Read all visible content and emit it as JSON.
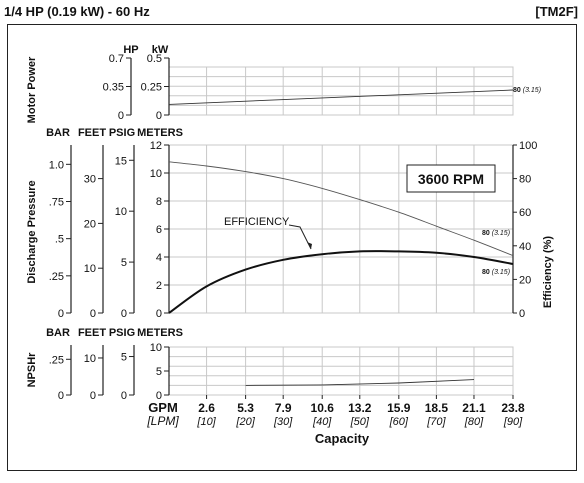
{
  "header": {
    "title": "1/4 HP (0.19 kW) - 60 Hz",
    "code": "[TM2F]"
  },
  "chart_data": {
    "type": "line",
    "x_title": "Capacity",
    "x_units": [
      "GPM",
      "[LPM]"
    ],
    "x_gpm": [
      0,
      2.6,
      5.3,
      7.9,
      10.6,
      13.2,
      15.9,
      18.5,
      21.1,
      23.8
    ],
    "x_ticks_gpm": [
      "2.6",
      "5.3",
      "7.9",
      "10.6",
      "13.2",
      "15.9",
      "18.5",
      "21.1",
      "23.8"
    ],
    "x_ticks_lpm": [
      "[10]",
      "[20]",
      "[30]",
      "[40]",
      "[50]",
      "[60]",
      "[70]",
      "[80]",
      "[90]"
    ],
    "xlim_gpm": [
      0,
      23.8
    ],
    "panels": {
      "power": {
        "ylabel": "Motor Power",
        "unit_hp": "HP",
        "unit_kw": "kW",
        "ylim_kw": [
          0,
          0.5
        ],
        "hp_ticks": [
          "0.7",
          "0.35",
          "0"
        ],
        "hp_values": [
          0.7,
          0.35,
          0
        ],
        "kw_ticks": [
          "0.5",
          "0.25",
          "0"
        ],
        "kw_values": [
          0.5,
          0.25,
          0
        ],
        "series": [
          {
            "label": "80",
            "label_sub": "(3.15)",
            "x": [
              0,
              23.8
            ],
            "y_kw": [
              0.11,
              0.26
            ]
          }
        ]
      },
      "pressure": {
        "ylabel": "Discharge Pressure",
        "units": [
          "BAR",
          "FEET",
          "PSIG",
          "METERS"
        ],
        "ylim_meters": [
          0,
          12
        ],
        "meter_ticks": [
          "12",
          "10",
          "8",
          "6",
          "4",
          "2",
          "0"
        ],
        "bar_ticks": [
          "1.0",
          ".75",
          ".5",
          ".25",
          "0"
        ],
        "bar_values": [
          1.0,
          0.75,
          0.5,
          0.25,
          0
        ],
        "feet_ticks": [
          "30",
          "20",
          "10",
          "0"
        ],
        "feet_values": [
          30,
          20,
          10,
          0
        ],
        "psig_ticks": [
          "15",
          "10",
          "5",
          "0"
        ],
        "psig_values": [
          15,
          10,
          5,
          0
        ],
        "eff_label": "Efficiency (%)",
        "ylim_eff": [
          0,
          100
        ],
        "eff_ticks": [
          "100",
          "80",
          "60",
          "40",
          "20",
          "0"
        ],
        "rpm_label": "3600 RPM",
        "efficiency_label": "EFFICIENCY",
        "series": [
          {
            "name": "head",
            "label": "80",
            "label_sub": "(3.15)",
            "x": [
              0,
              2.6,
              5.3,
              7.9,
              10.6,
              13.2,
              15.9,
              18.5,
              21.1,
              23.8
            ],
            "y_meters": [
              10.8,
              10.5,
              10.1,
              9.6,
              8.9,
              8.1,
              7.2,
              6.2,
              5.2,
              4.1
            ]
          },
          {
            "name": "efficiency",
            "x": [
              0,
              2.6,
              5.3,
              7.9,
              10.6,
              13.2,
              15.9,
              18.5,
              21.1,
              23.8
            ],
            "y_meters": [
              0.0,
              1.9,
              3.1,
              3.8,
              4.2,
              4.4,
              4.4,
              4.3,
              4.0,
              3.5
            ]
          },
          {
            "name": "head-lower",
            "label": "80",
            "label_sub": "(3.15)",
            "x": [
              19.5,
              23.8
            ],
            "y_meters": [
              3.6,
              3.2
            ]
          }
        ]
      },
      "npshr": {
        "ylabel": "NPSHr",
        "units": [
          "BAR",
          "FEET",
          "PSIG",
          "METERS"
        ],
        "ylim_meters": [
          0,
          10
        ],
        "meter_ticks": [
          "10",
          "5",
          "0"
        ],
        "bar_ticks": [
          ".25",
          "0"
        ],
        "bar_values": [
          0.25,
          0
        ],
        "feet_ticks": [
          "10",
          "0"
        ],
        "feet_values": [
          10,
          0
        ],
        "psig_ticks": [
          "5",
          "0"
        ],
        "psig_values": [
          5,
          0
        ],
        "series": [
          {
            "name": "npshr",
            "x": [
              5.3,
              10.6,
              15.9,
              21.1
            ],
            "y_meters": [
              2.0,
              2.1,
              2.5,
              3.2
            ]
          }
        ]
      }
    }
  }
}
